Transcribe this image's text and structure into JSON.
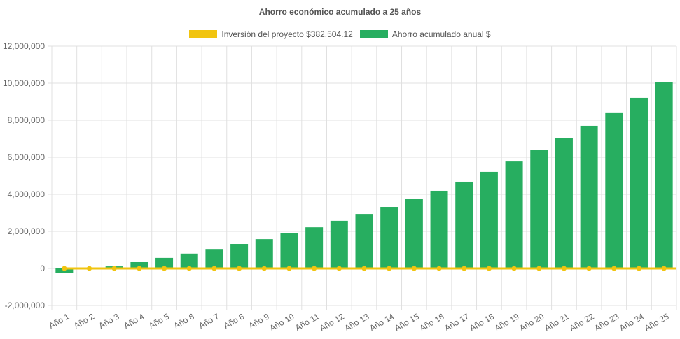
{
  "chart_data": {
    "type": "bar",
    "title": "Ahorro económico acumulado a 25 años",
    "categories": [
      "Año 1",
      "Año 2",
      "Año 3",
      "Año 4",
      "Año 5",
      "Año 6",
      "Año 7",
      "Año 8",
      "Año 9",
      "Año 10",
      "Año 11",
      "Año 12",
      "Año 13",
      "Año 14",
      "Año 15",
      "Año 16",
      "Año 17",
      "Año 18",
      "Año 19",
      "Año 20",
      "Año 21",
      "Año 22",
      "Año 23",
      "Año 24",
      "Año 25"
    ],
    "series": [
      {
        "name": "Inversión del proyecto $382,504.12",
        "type": "line",
        "color": "#f1c40f",
        "values": [
          0,
          0,
          0,
          0,
          0,
          0,
          0,
          0,
          0,
          0,
          0,
          0,
          0,
          0,
          0,
          0,
          0,
          0,
          0,
          0,
          0,
          0,
          0,
          0,
          0
        ]
      },
      {
        "name": "Ahorro acumulado anual $",
        "type": "bar",
        "color": "#27ae60",
        "values": [
          -230000,
          0,
          110000,
          340000,
          570000,
          800000,
          1050000,
          1320000,
          1580000,
          1890000,
          2220000,
          2570000,
          2940000,
          3320000,
          3740000,
          4190000,
          4680000,
          5210000,
          5770000,
          6380000,
          7020000,
          7700000,
          8420000,
          9210000,
          10040000
        ]
      }
    ],
    "ylim": [
      -2000000,
      12000000
    ],
    "yticks": [
      "12,000,000",
      "10,000,000",
      "8,000,000",
      "6,000,000",
      "4,000,000",
      "2,000,000",
      "0",
      "-2,000,000"
    ],
    "ytick_values": [
      12000000,
      10000000,
      8000000,
      6000000,
      4000000,
      2000000,
      0,
      -2000000
    ],
    "grid": true,
    "legend_position": "top"
  }
}
